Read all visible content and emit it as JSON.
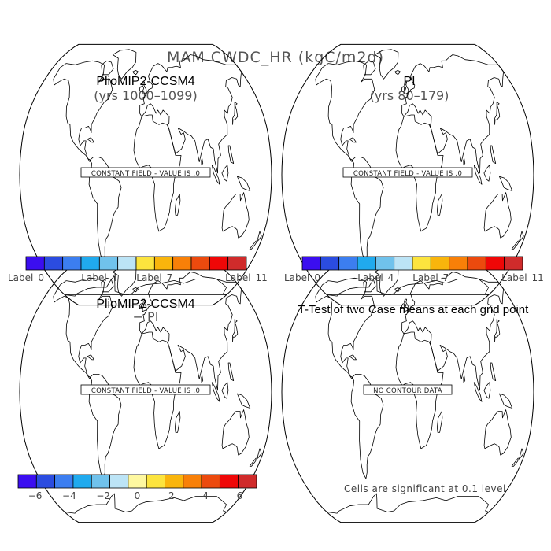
{
  "figure_title": "MAM CWDC_HR (kgC/m2d)",
  "panels": [
    {
      "title": "PlioMIP2-CCSM4",
      "subtitle": "(yrs 1000–1099)",
      "message": "CONSTANT FIELD - VALUE IS .0"
    },
    {
      "title": "PI",
      "subtitle": "(yrs 80–179)",
      "message": "CONSTANT FIELD - VALUE IS .0"
    },
    {
      "title": "PlioMIP2-CCSM4",
      "subtitle": "− PI",
      "message": "CONSTANT FIELD - VALUE IS .0"
    },
    {
      "title": "T-Test of two Case means at each grid point",
      "subtitle": "",
      "message": "NO CONTOUR DATA"
    }
  ],
  "colorbar_top": {
    "colors": [
      "#3b0ef0",
      "#2b4ce0",
      "#3c7ef0",
      "#20aaee",
      "#70c2ec",
      "#bce4f6",
      "#fce43e",
      "#f9b50c",
      "#f88008",
      "#ec4a0e",
      "#ef0707",
      "#d02b2b"
    ],
    "labels": [
      "Label_0",
      "Label_4",
      "Label_7",
      "Label_11"
    ],
    "label_bins": [
      0,
      4,
      7,
      11
    ]
  },
  "colorbar_diff": {
    "colors": [
      "#3b0ef0",
      "#2b4ce0",
      "#3c7ef0",
      "#20aaee",
      "#70c2ec",
      "#bce4f6",
      "#fef8a0",
      "#fce43e",
      "#f9b50c",
      "#f88008",
      "#ec4a0e",
      "#ef0707",
      "#d02b2b"
    ],
    "labels": [
      "−6",
      "−4",
      "−2",
      "0",
      "2",
      "4",
      "6"
    ],
    "label_values": [
      -6,
      -4,
      -2,
      0,
      2,
      4,
      6
    ],
    "range": [
      -7,
      7
    ]
  },
  "significance_note": "Cells are significant at 0.1 level"
}
